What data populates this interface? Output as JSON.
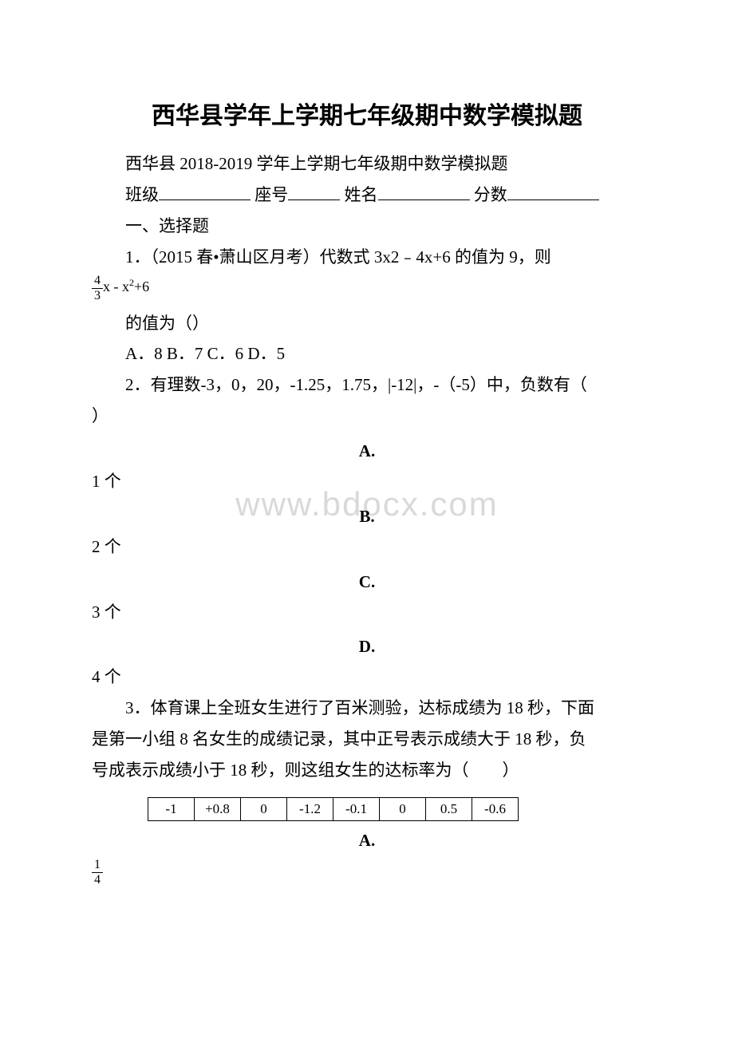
{
  "watermark": "www.bdocx.com",
  "title": "西华县学年上学期七年级期中数学模拟题",
  "subtitle": "西华县 2018-2019 学年上学期七年级期中数学模拟题",
  "header_labels": {
    "class": "班级",
    "seat": "座号",
    "name": "姓名",
    "score": "分数"
  },
  "section1": "一、选择题",
  "q1": {
    "text": "1．（2015 春•萧山区月考）代数式 3x2﹣4x+6 的值为 9，则",
    "formula_frac_num": "4",
    "formula_frac_den": "3",
    "formula_rest": "x - x",
    "formula_sup": "2",
    "formula_tail": "+6",
    "tail": "的值为（）",
    "options": "A．8 B．7 C．6 D．5"
  },
  "q2": {
    "text_a": "2．有理数-3，0，20，-1.25，1.75，|-12|，-（-5）中，负数有（",
    "text_b": "）",
    "options": {
      "A": {
        "label": "A.",
        "text": "1 个"
      },
      "B": {
        "label": "B.",
        "text": "2 个"
      },
      "C": {
        "label": "C.",
        "text": "3 个"
      },
      "D": {
        "label": "D.",
        "text": "4 个"
      }
    }
  },
  "q3": {
    "line1": "3．体育课上全班女生进行了百米测验，达标成绩为 18 秒，下面",
    "line2": "是第一小组 8 名女生的成绩记录，其中正号表示成绩大于 18 秒，负",
    "line3": "号成表示成绩小于 18 秒，则这组女生的达标率为（　　）",
    "table": [
      "-1",
      "+0.8",
      "0",
      "-1.2",
      "-0.1",
      "0",
      "0.5",
      "-0.6"
    ],
    "opt_a_label": "A.",
    "frac_num": "1",
    "frac_den": "4"
  },
  "colors": {
    "text": "#000000",
    "background": "#ffffff",
    "watermark": "#d9d9d9",
    "border": "#000000"
  }
}
